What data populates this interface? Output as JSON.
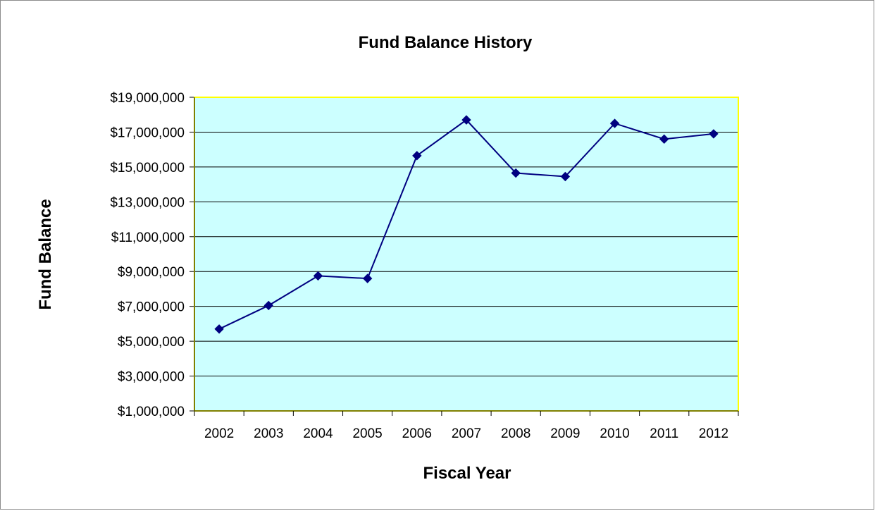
{
  "chart_data": {
    "type": "line",
    "title": "Fund Balance History",
    "xlabel": "Fiscal Year",
    "ylabel": "Fund Balance",
    "categories": [
      "2002",
      "2003",
      "2004",
      "2005",
      "2006",
      "2007",
      "2008",
      "2009",
      "2010",
      "2011",
      "2012"
    ],
    "series": [
      {
        "values": [
          5700000,
          7050000,
          8750000,
          8600000,
          15650000,
          17700000,
          14650000,
          14450000,
          17500000,
          16600000,
          16900000
        ]
      }
    ],
    "ylim": [
      1000000,
      19000000
    ],
    "yticks": [
      1000000,
      3000000,
      5000000,
      7000000,
      9000000,
      11000000,
      13000000,
      15000000,
      17000000,
      19000000
    ],
    "ytick_labels": [
      "$1,000,000",
      "$3,000,000",
      "$5,000,000",
      "$7,000,000",
      "$9,000,000",
      "$11,000,000",
      "$13,000,000",
      "$15,000,000",
      "$17,000,000",
      "$19,000,000"
    ],
    "grid": true,
    "legend": "none",
    "colors": {
      "plot_background": "#ccffff",
      "plot_border": "#ffff00",
      "line": "#000080",
      "marker": "#000080",
      "grid": "#000000"
    }
  }
}
